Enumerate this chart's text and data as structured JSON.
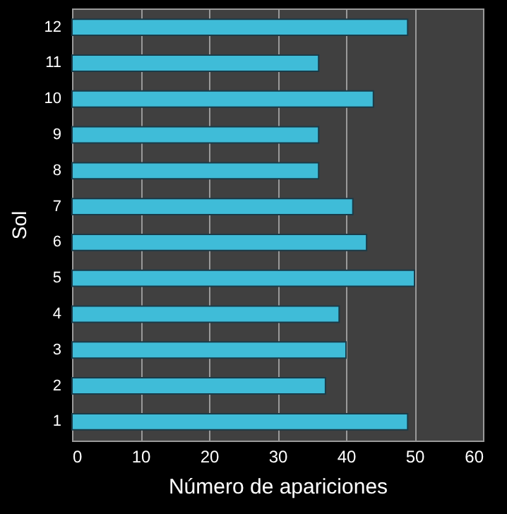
{
  "chart_data": {
    "type": "bar",
    "orientation": "horizontal",
    "xlabel": "Número  de apariciones",
    "ylabel": "Sol",
    "categories": [
      "12",
      "11",
      "10",
      "9",
      "8",
      "7",
      "6",
      "5",
      "4",
      "3",
      "2",
      "1"
    ],
    "series": [
      {
        "color": "#3fbcd8",
        "values": [
          49,
          36,
          44,
          36,
          36,
          41,
          43,
          50,
          39,
          40,
          37,
          49
        ]
      }
    ],
    "xlim": [
      0,
      60
    ],
    "xticks": [
      0,
      10,
      20,
      30,
      40,
      50,
      60
    ],
    "grid": "x",
    "legend": false
  }
}
